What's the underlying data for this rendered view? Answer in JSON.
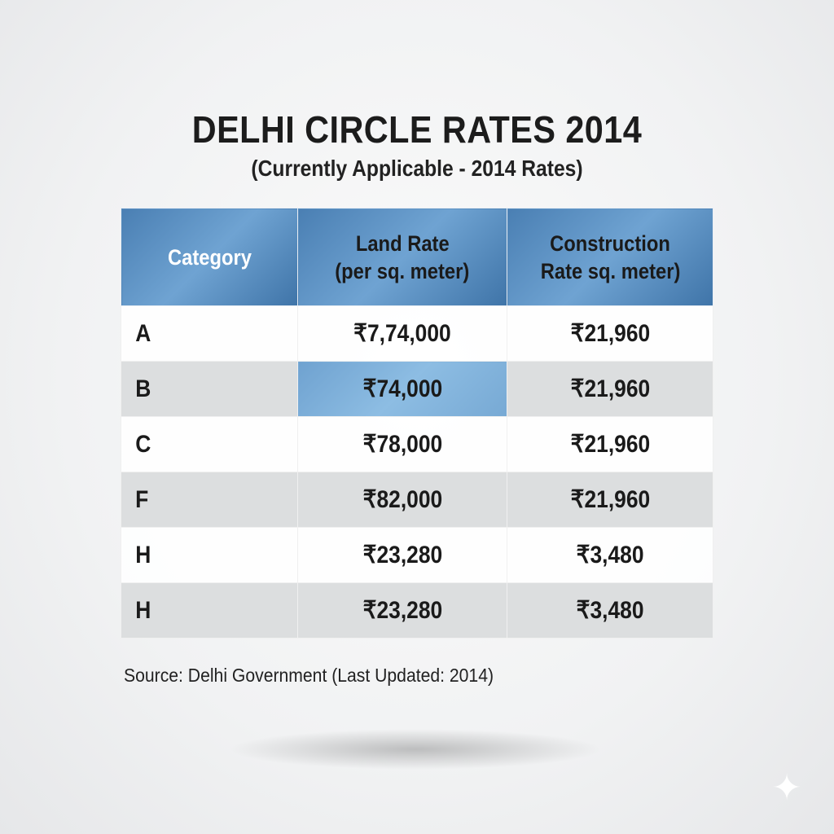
{
  "title": "DELHI CIRCLE RATES 2014",
  "subtitle": "(Currently Applicable - 2014 Rates)",
  "table": {
    "headers": [
      "Category",
      "Land Rate\n(per sq. meter)",
      "Construction\nRate sq. meter)"
    ],
    "header_lines": [
      [
        "Category"
      ],
      [
        "Land Rate",
        "(per sq. meter)"
      ],
      [
        "Construction",
        "Rate sq. meter)"
      ]
    ],
    "rows": [
      [
        "A",
        "₹7,74,000",
        "₹21,960"
      ],
      [
        "B",
        "₹74,000",
        "₹21,960"
      ],
      [
        "C",
        "₹78,000",
        "₹21,960"
      ],
      [
        "F",
        "₹82,000",
        "₹21,960"
      ],
      [
        "H",
        "₹23,280",
        "₹3,480"
      ],
      [
        "H",
        "₹23,280",
        "₹3,480"
      ]
    ],
    "highlighted_cell": {
      "row": 1,
      "col": 1
    },
    "header_color": "#4a7fb3",
    "highlight_color": "#8dbde3"
  },
  "source": "Source: Delhi Government (Last Updated: 2014)",
  "icons": {
    "corner": "sparkle-icon"
  }
}
